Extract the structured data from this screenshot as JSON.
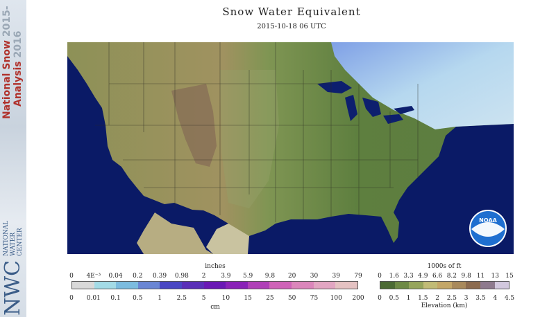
{
  "sidebar": {
    "title_line1": "National Snow",
    "title_line2": "Analysis",
    "year_line1": "2015-",
    "year_line2": "2016",
    "org_abbr": "NWC",
    "org_line1": "NATIONAL",
    "org_line2": "WATER",
    "org_line3": "CENTER"
  },
  "map": {
    "title": "Snow Water Equivalent",
    "timestamp": "2015-10-18 06 UTC",
    "logo_text": "NOAA"
  },
  "swe_legend": {
    "top_unit": "inches",
    "bottom_unit": "cm",
    "top_ticks": [
      "0",
      "4E⁻³",
      "0.04",
      "0.2",
      "0.39",
      "0.98",
      "2",
      "3.9",
      "5.9",
      "9.8",
      "20",
      "30",
      "39",
      "79"
    ],
    "bottom_ticks": [
      "0",
      "0.01",
      "0.1",
      "0.5",
      "1",
      "2.5",
      "5",
      "10",
      "15",
      "25",
      "50",
      "75",
      "100",
      "200"
    ],
    "colors": [
      "#d9d9d9",
      "#a3dbe6",
      "#7cbcdf",
      "#6a86d4",
      "#4a47c4",
      "#5a2fb8",
      "#6a18b5",
      "#8a22b8",
      "#b040b8",
      "#cf63b8",
      "#db86bb",
      "#e2a6c2",
      "#e5c2c2"
    ]
  },
  "elev_legend": {
    "top_unit": "1000s of ft",
    "bottom_unit": "Elevation (km)",
    "top_ticks": [
      "0",
      "1.6",
      "3.3",
      "4.9",
      "6.6",
      "8.2",
      "9.8",
      "11",
      "13",
      "15"
    ],
    "bottom_ticks": [
      "0",
      "0.5",
      "1",
      "1.5",
      "2",
      "2.5",
      "3",
      "3.5",
      "4",
      "4.5"
    ],
    "colors": [
      "#4c6b34",
      "#6e8a45",
      "#96a55c",
      "#c1bb76",
      "#c4a768",
      "#a98a5c",
      "#8c6b4f",
      "#8e7a8e",
      "#d2c8de"
    ]
  }
}
